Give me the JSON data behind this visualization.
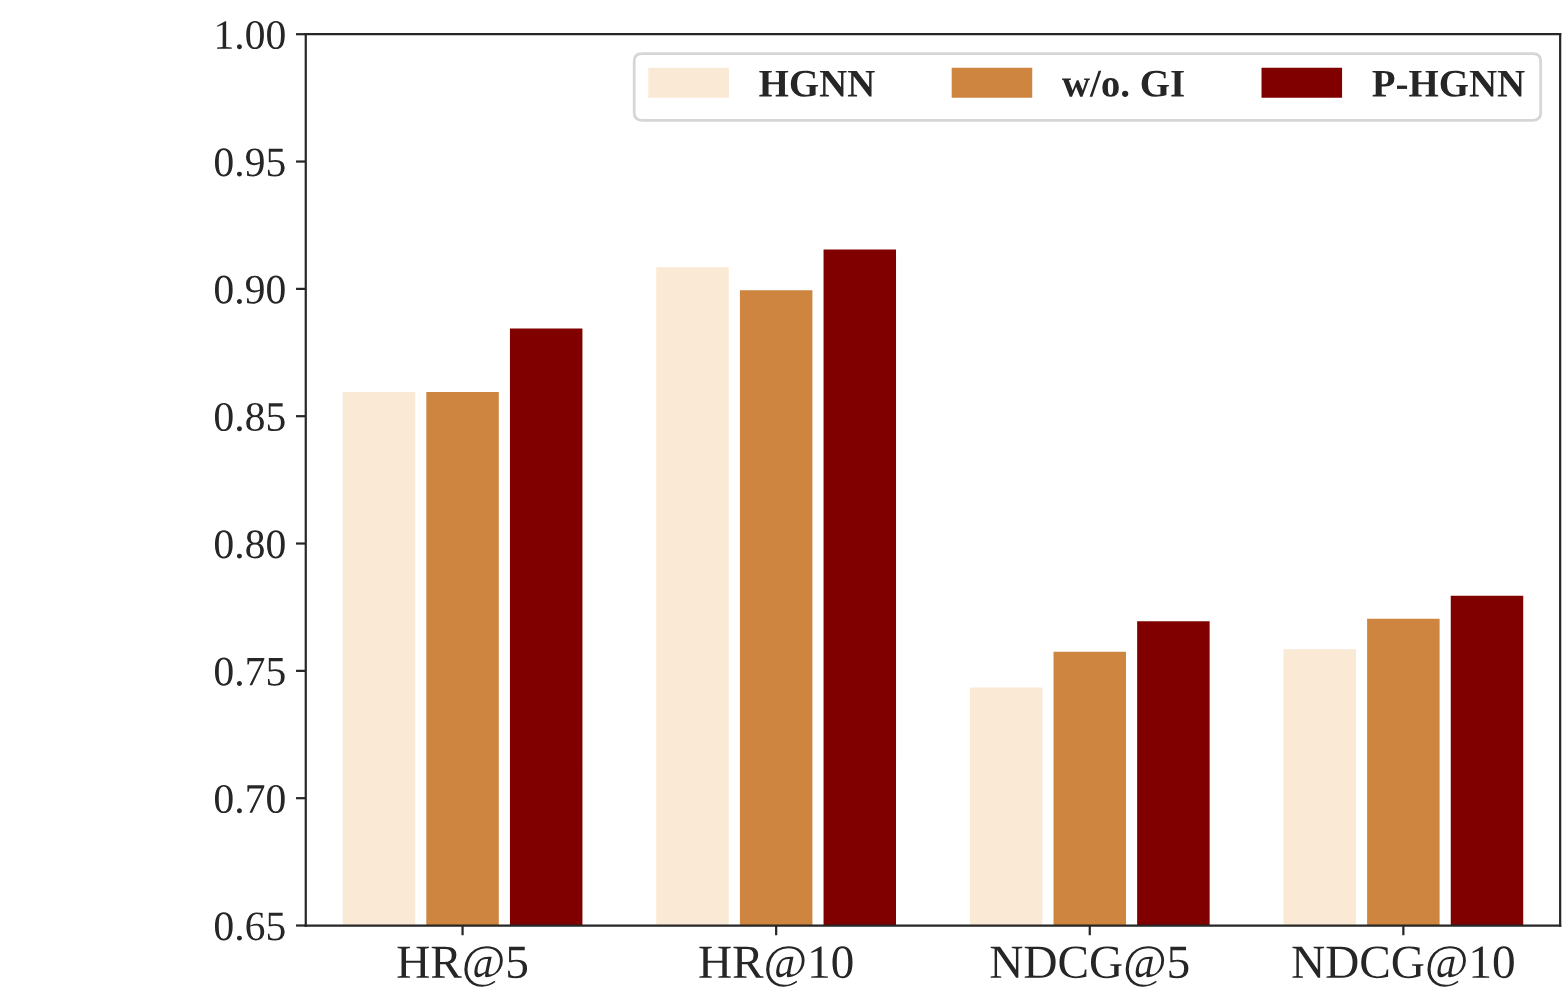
{
  "chart_data": {
    "type": "bar",
    "categories": [
      "HR@5",
      "HR@10",
      "NDCG@5",
      "NDCG@10"
    ],
    "series": [
      {
        "name": "HGNN",
        "color": "#fae9d4",
        "values": [
          0.86,
          0.909,
          0.744,
          0.759
        ]
      },
      {
        "name": "w/o. GI",
        "color": "#cd853f",
        "values": [
          0.86,
          0.9,
          0.758,
          0.771
        ]
      },
      {
        "name": "P-HGNN",
        "color": "#800000",
        "values": [
          0.885,
          0.916,
          0.77,
          0.78
        ]
      }
    ],
    "ylim": [
      0.65,
      1.0
    ],
    "yticks": [
      {
        "value": 0.65,
        "label": "0.65"
      },
      {
        "value": 0.7,
        "label": "0.70"
      },
      {
        "value": 0.75,
        "label": "0.75"
      },
      {
        "value": 0.8,
        "label": "0.80"
      },
      {
        "value": 0.85,
        "label": "0.85"
      },
      {
        "value": 0.9,
        "label": "0.90"
      },
      {
        "value": 0.95,
        "label": "0.95"
      },
      {
        "value": 1.0,
        "label": "1.00"
      }
    ],
    "legend": "top right",
    "grid": false
  }
}
